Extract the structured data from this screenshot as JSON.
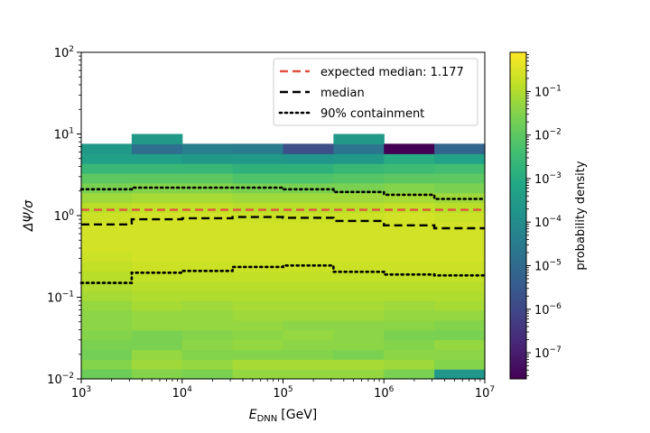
{
  "chart_data": {
    "type": "heatmap",
    "title": "",
    "xlabel": {
      "main": "E",
      "sub": "DNN",
      "unit": "[GeV]"
    },
    "ylabel": "ΔΨ/σ",
    "x_scale": "log",
    "y_scale": "log",
    "xlim": [
      1000,
      10000000
    ],
    "ylim": [
      0.01,
      100
    ],
    "x_ticks": [
      {
        "value": 1000,
        "base": "10",
        "exp": "3"
      },
      {
        "value": 10000,
        "base": "10",
        "exp": "4"
      },
      {
        "value": 100000,
        "base": "10",
        "exp": "5"
      },
      {
        "value": 1000000,
        "base": "10",
        "exp": "6"
      },
      {
        "value": 10000000,
        "base": "10",
        "exp": "7"
      }
    ],
    "y_ticks": [
      {
        "value": 0.01,
        "base": "10",
        "exp": "−2"
      },
      {
        "value": 0.1,
        "base": "10",
        "exp": "−1"
      },
      {
        "value": 1,
        "base": "10",
        "exp": "0"
      },
      {
        "value": 10,
        "base": "10",
        "exp": "1"
      },
      {
        "value": 100,
        "base": "10",
        "exp": "2"
      }
    ],
    "x_bin_edges": [
      1000,
      3162,
      10000,
      31623,
      100000,
      316228,
      1000000,
      3162278,
      10000000
    ],
    "y_bin_count": 25,
    "y_bin_range": [
      0.01,
      10
    ],
    "density_log10": [
      [
        -1.8,
        -1.5,
        -1.6,
        -1.3,
        -1.3,
        -1.3,
        -1.6,
        -3.7
      ],
      [
        -1.5,
        -1.2,
        -1.3,
        -1.1,
        -1.1,
        -1.1,
        -1.2,
        -1.5
      ],
      [
        -1.7,
        -1.3,
        -1.5,
        -1.5,
        -1.5,
        -1.6,
        -1.4,
        -1.4
      ],
      [
        -1.6,
        -1.6,
        -1.4,
        -1.3,
        -1.4,
        -1.4,
        -1.5,
        -1.3
      ],
      [
        -1.5,
        -1.6,
        -1.5,
        -1.4,
        -1.3,
        -1.4,
        -1.6,
        -1.6
      ],
      [
        -1.4,
        -1.3,
        -1.3,
        -1.3,
        -1.4,
        -1.4,
        -1.4,
        -1.5
      ],
      [
        -1.4,
        -1.3,
        -1.3,
        -1.2,
        -1.2,
        -1.2,
        -1.3,
        -1.3
      ],
      [
        -1.3,
        -1.1,
        -1.2,
        -1.1,
        -1.1,
        -1.1,
        -1.2,
        -1.1
      ],
      [
        -1.1,
        -1.0,
        -1.0,
        -1.0,
        -1.0,
        -1.0,
        -1.0,
        -1.0
      ],
      [
        -1.0,
        -0.9,
        -0.9,
        -0.9,
        -0.9,
        -0.9,
        -0.9,
        -0.9
      ],
      [
        -0.9,
        -0.8,
        -0.8,
        -0.8,
        -0.8,
        -0.8,
        -0.8,
        -0.8
      ],
      [
        -0.8,
        -0.7,
        -0.7,
        -0.7,
        -0.7,
        -0.7,
        -0.7,
        -0.7
      ],
      [
        -0.7,
        -0.6,
        -0.6,
        -0.6,
        -0.6,
        -0.6,
        -0.6,
        -0.6
      ],
      [
        -0.6,
        -0.6,
        -0.6,
        -0.6,
        -0.6,
        -0.6,
        -0.6,
        -0.6
      ],
      [
        -0.6,
        -0.6,
        -0.6,
        -0.6,
        -0.6,
        -0.6,
        -0.6,
        -0.6
      ],
      [
        -0.6,
        -0.6,
        -0.6,
        -0.6,
        -0.6,
        -0.6,
        -0.6,
        -0.6
      ],
      [
        -0.7,
        -0.6,
        -0.6,
        -0.7,
        -0.7,
        -0.7,
        -0.6,
        -0.7
      ],
      [
        -0.9,
        -0.8,
        -0.8,
        -0.9,
        -0.9,
        -0.9,
        -0.8,
        -0.9
      ],
      [
        -1.2,
        -1.1,
        -1.1,
        -1.2,
        -1.2,
        -1.2,
        -1.1,
        -1.2
      ],
      [
        -1.6,
        -1.5,
        -1.5,
        -1.6,
        -1.6,
        -1.6,
        -1.5,
        -1.6
      ],
      [
        -2.0,
        -2.0,
        -2.0,
        -2.2,
        -2.2,
        -2.1,
        -2.0,
        -2.0
      ],
      [
        -2.6,
        -2.6,
        -2.6,
        -2.8,
        -2.8,
        -2.6,
        -2.5,
        -2.4
      ],
      [
        -3.4,
        -3.4,
        -3.6,
        -3.6,
        -3.7,
        -3.6,
        -3.0,
        -3.3
      ],
      [
        -3.6,
        -4.9,
        -4.4,
        -4.5,
        -5.8,
        -4.7,
        -7.6,
        -5.2
      ],
      [
        null,
        -3.6,
        null,
        null,
        null,
        -3.6,
        null,
        null
      ]
    ],
    "colorbar": {
      "label": "probability density",
      "scale": "log",
      "range_log10": [
        -7.6,
        -0.1
      ],
      "ticks": [
        {
          "log10": -7,
          "base": "10",
          "exp": "−7"
        },
        {
          "log10": -6,
          "base": "10",
          "exp": "−6"
        },
        {
          "log10": -5,
          "base": "10",
          "exp": "−5"
        },
        {
          "log10": -4,
          "base": "10",
          "exp": "−4"
        },
        {
          "log10": -3,
          "base": "10",
          "exp": "−3"
        },
        {
          "log10": -2,
          "base": "10",
          "exp": "−2"
        },
        {
          "log10": -1,
          "base": "10",
          "exp": "−1"
        }
      ],
      "colormap": "viridis"
    },
    "series": [
      {
        "name": "expected median: 1.177",
        "style": "dashed",
        "color": "#e2513f",
        "x": [
          1000,
          10000000
        ],
        "y": [
          1.177,
          1.177
        ]
      },
      {
        "name": "median",
        "style": "dashed",
        "color": "#000000",
        "x": [
          1000,
          3162,
          3162,
          10000,
          10000,
          31623,
          31623,
          100000,
          100000,
          316228,
          316228,
          1000000,
          1000000,
          3162278,
          3162278,
          10000000
        ],
        "y": [
          0.78,
          0.78,
          0.9,
          0.9,
          0.93,
          0.93,
          0.96,
          0.96,
          0.94,
          0.94,
          0.86,
          0.86,
          0.76,
          0.76,
          0.7,
          0.7
        ]
      },
      {
        "name": "90% containment",
        "style": "dotted",
        "color": "#000000",
        "segments": [
          {
            "x": [
              1000,
              3162,
              3162,
              10000,
              10000,
              31623,
              31623,
              100000,
              100000,
              316228,
              316228,
              1000000,
              1000000,
              3162278,
              3162278,
              10000000
            ],
            "y": [
              2.1,
              2.1,
              2.2,
              2.2,
              2.2,
              2.2,
              2.2,
              2.2,
              2.1,
              2.1,
              1.95,
              1.95,
              1.8,
              1.8,
              1.6,
              1.6
            ]
          },
          {
            "x": [
              1000,
              3162,
              3162,
              10000,
              10000,
              31623,
              31623,
              100000,
              100000,
              316228,
              316228,
              1000000,
              1000000,
              3162278,
              3162278,
              10000000
            ],
            "y": [
              0.15,
              0.15,
              0.2,
              0.2,
              0.21,
              0.21,
              0.235,
              0.235,
              0.245,
              0.245,
              0.205,
              0.205,
              0.19,
              0.19,
              0.185,
              0.185
            ]
          }
        ]
      }
    ],
    "legend": {
      "placement": "top-right"
    }
  }
}
